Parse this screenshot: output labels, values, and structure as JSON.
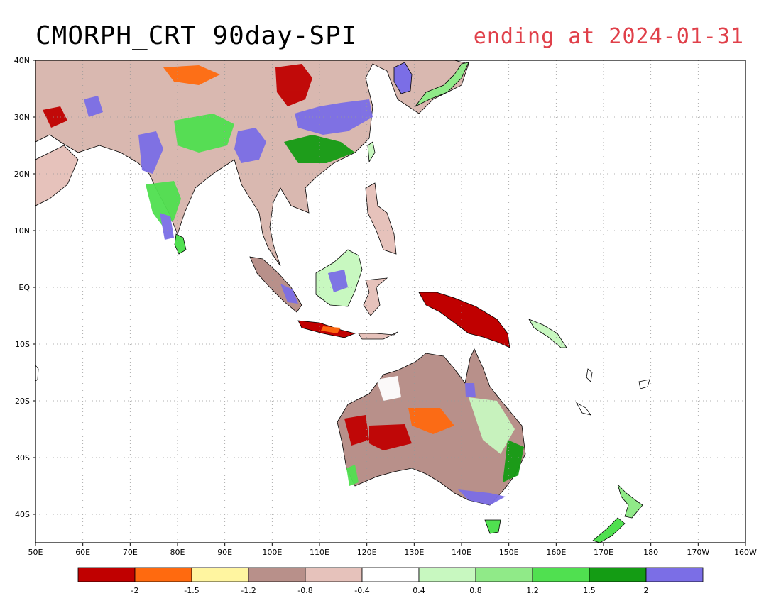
{
  "title": "CMORPH_CRT 90day-SPI",
  "subtitle": "ending at 2024-01-31",
  "map": {
    "lon_range": [
      50,
      200
    ],
    "lat_range": [
      -45,
      40
    ],
    "grid": true,
    "lon_labels": [
      "50E",
      "60E",
      "70E",
      "80E",
      "90E",
      "100E",
      "110E",
      "120E",
      "130E",
      "140E",
      "150E",
      "160E",
      "170E",
      "180",
      "170W",
      "160W"
    ],
    "lat_labels": [
      "40N",
      "30N",
      "20N",
      "10N",
      "EQ",
      "10S",
      "20S",
      "30S",
      "40S"
    ],
    "lat_values": [
      40,
      30,
      20,
      10,
      0,
      -10,
      -20,
      -30,
      -40
    ]
  },
  "legend": {
    "colors": [
      "#c00000",
      "#ff6a0f",
      "#fff5a0",
      "#b8908a",
      "#e6c2bb",
      "#ffffff",
      "#c8f8c0",
      "#90ea88",
      "#50e050",
      "#149c14",
      "#7b6ee6"
    ],
    "labels": [
      "-2",
      "-1.5",
      "-1.2",
      "-0.8",
      "-0.4",
      "0.4",
      "0.8",
      "1.2",
      "1.5",
      "2"
    ]
  }
}
